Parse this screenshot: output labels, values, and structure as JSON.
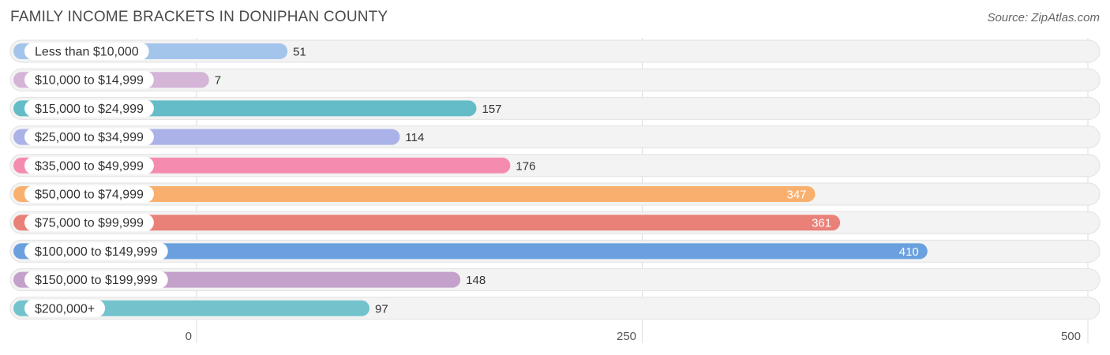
{
  "header": {
    "title": "FAMILY INCOME BRACKETS IN DONIPHAN COUNTY",
    "source": "Source: ZipAtlas.com"
  },
  "chart_data": {
    "type": "bar",
    "orientation": "horizontal",
    "title": "FAMILY INCOME BRACKETS IN DONIPHAN COUNTY",
    "xlabel": "",
    "ylabel": "",
    "xlim": [
      0,
      500
    ],
    "x_ticks": [
      "0",
      "250",
      "500"
    ],
    "grid": true,
    "categories": [
      "Less than $10,000",
      "$10,000 to $14,999",
      "$15,000 to $24,999",
      "$25,000 to $34,999",
      "$35,000 to $49,999",
      "$50,000 to $74,999",
      "$75,000 to $99,999",
      "$100,000 to $149,999",
      "$150,000 to $199,999",
      "$200,000+"
    ],
    "values": [
      51,
      7,
      157,
      114,
      176,
      347,
      361,
      410,
      148,
      97
    ],
    "colors": [
      "#a4c5eb",
      "#d4b4d7",
      "#63bcc8",
      "#aab2e8",
      "#f58cb0",
      "#f9b06e",
      "#e98179",
      "#6aa0dd",
      "#c3a1cb",
      "#72c3cc"
    ]
  }
}
